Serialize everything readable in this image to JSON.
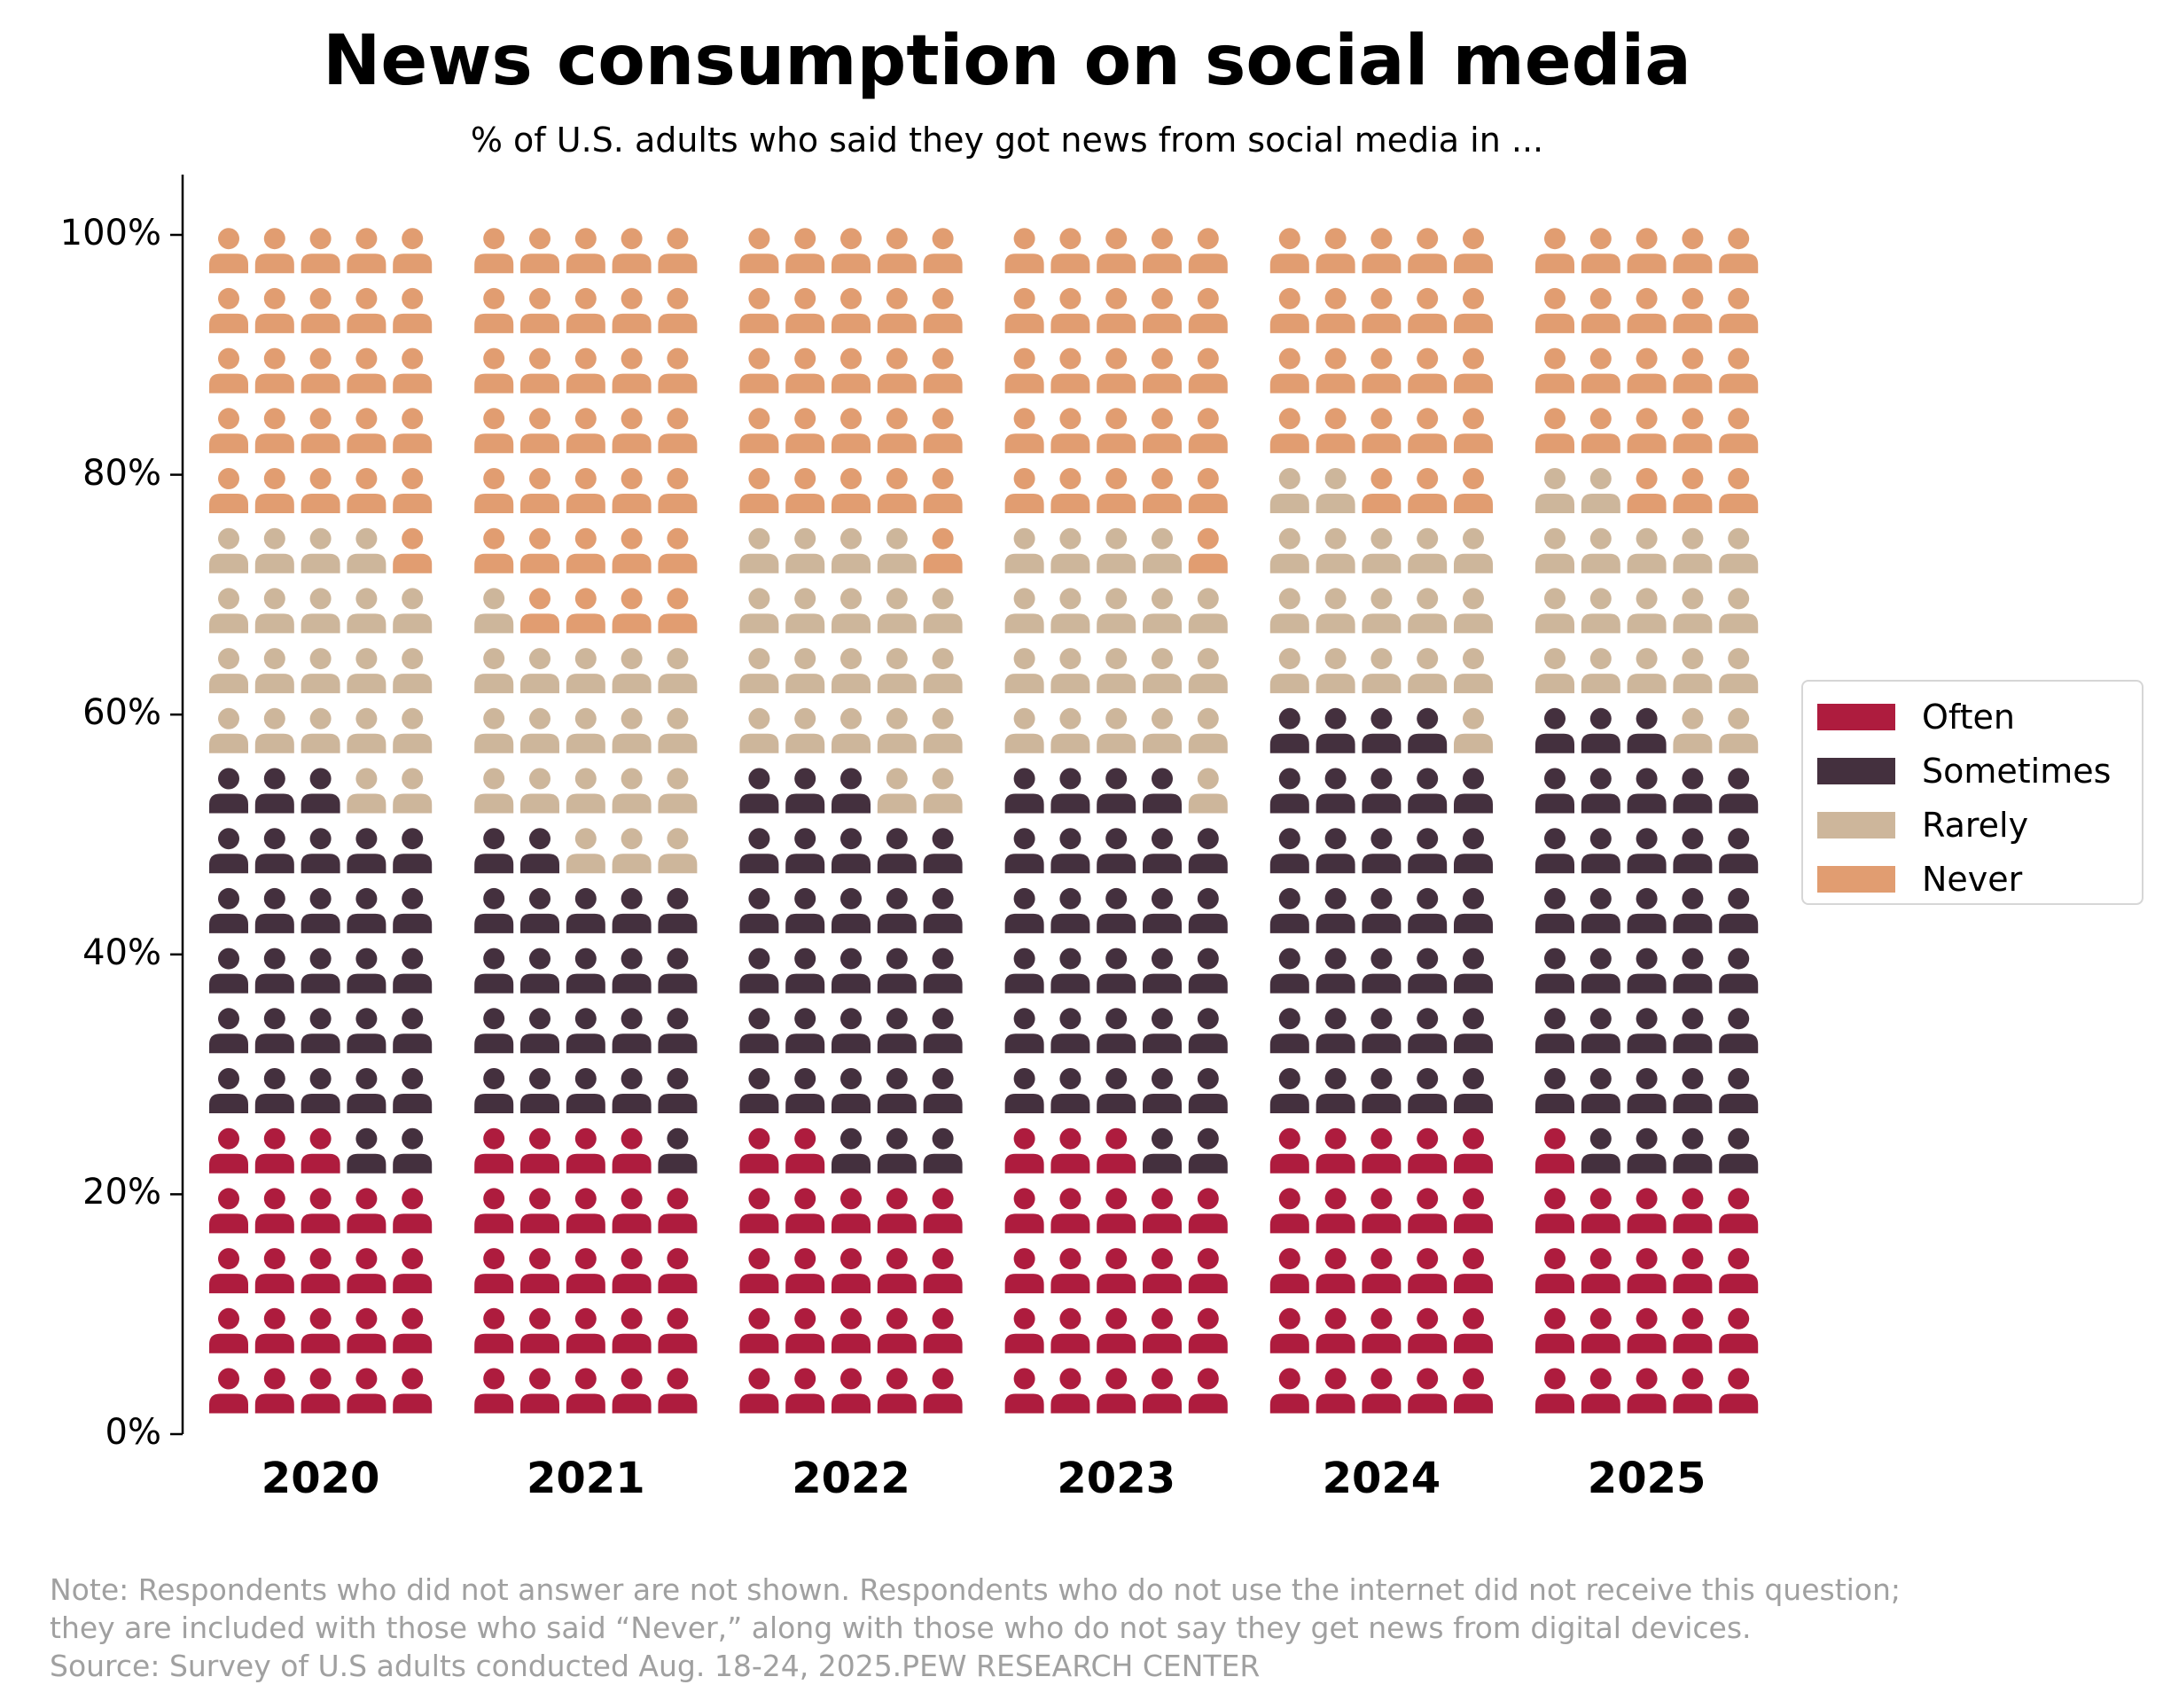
{
  "title": "News consumption on social media",
  "subtitle": "% of U.S. adults who said they got news from social media in ...",
  "chart_data": {
    "type": "waffle",
    "categories": [
      "2020",
      "2021",
      "2022",
      "2023",
      "2024",
      "2025"
    ],
    "series": [
      {
        "name": "Often",
        "color": "#ae1c3e",
        "values": [
          23,
          24,
          22,
          23,
          25,
          21
        ]
      },
      {
        "name": "Sometimes",
        "color": "#44303e",
        "values": [
          30,
          23,
          31,
          31,
          34,
          37
        ]
      },
      {
        "name": "Rarely",
        "color": "#cdb69b",
        "values": [
          21,
          19,
          21,
          20,
          18,
          19
        ]
      },
      {
        "name": "Never",
        "color": "#e19d71",
        "values": [
          26,
          34,
          26,
          26,
          23,
          23
        ]
      }
    ],
    "grid_columns": 5,
    "grid_rows": 20,
    "y_ticks": [
      "0%",
      "20%",
      "40%",
      "60%",
      "80%",
      "100%"
    ],
    "ylim": [
      0,
      100
    ],
    "legend_position": "center-right"
  },
  "note": [
    "Note: Respondents who did not answer are not shown. Respondents who do not use the internet did not receive this question;",
    "they are included with those who said “Never,” along with those who do not say they get news from digital devices.",
    "Source: Survey of U.S adults conducted Aug. 18-24, 2025.PEW RESEARCH CENTER"
  ]
}
